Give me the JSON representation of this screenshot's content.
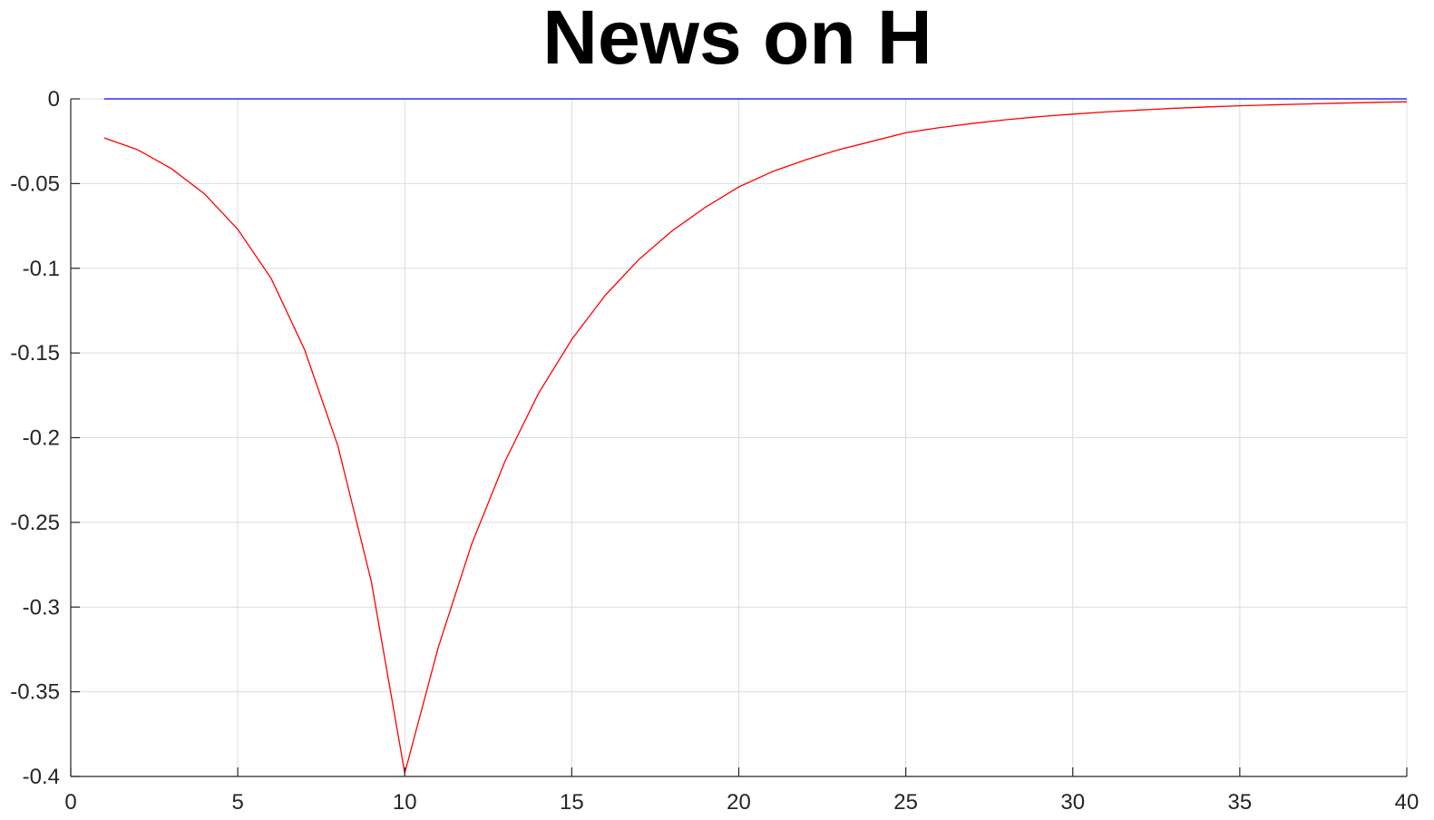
{
  "chart_data": {
    "type": "line",
    "title": "News on H",
    "xlabel": "",
    "ylabel": "",
    "xlim": [
      0,
      40
    ],
    "ylim": [
      -0.4,
      0
    ],
    "xticks": [
      0,
      5,
      10,
      15,
      20,
      25,
      30,
      35,
      40
    ],
    "xtick_labels": [
      "0",
      "5",
      "10",
      "15",
      "20",
      "25",
      "30",
      "35",
      "40"
    ],
    "yticks": [
      0,
      -0.05,
      -0.1,
      -0.15,
      -0.2,
      -0.25,
      -0.3,
      -0.35,
      -0.4
    ],
    "ytick_labels": [
      "0",
      "-0.05",
      "-0.1",
      "-0.15",
      "-0.2",
      "-0.25",
      "-0.3",
      "-0.35",
      "-0.4"
    ],
    "grid": true,
    "x": [
      1,
      2,
      3,
      4,
      5,
      6,
      7,
      8,
      9,
      10,
      11,
      12,
      13,
      14,
      15,
      16,
      17,
      18,
      19,
      20,
      21,
      22,
      23,
      24,
      25,
      26,
      27,
      28,
      29,
      30,
      31,
      32,
      33,
      34,
      35,
      36,
      37,
      38,
      39,
      40
    ],
    "series": [
      {
        "color": "#ff0000",
        "values": [
          -0.023,
          -0.03,
          -0.041,
          -0.056,
          -0.077,
          -0.106,
          -0.148,
          -0.205,
          -0.285,
          -0.398,
          -0.324,
          -0.263,
          -0.214,
          -0.174,
          -0.142,
          -0.116,
          -0.095,
          -0.078,
          -0.064,
          -0.052,
          -0.043,
          -0.036,
          -0.03,
          -0.025,
          -0.02,
          -0.017,
          -0.0145,
          -0.0123,
          -0.0105,
          -0.009,
          -0.0077,
          -0.0066,
          -0.0056,
          -0.0048,
          -0.0041,
          -0.0035,
          -0.003,
          -0.0025,
          -0.0021,
          -0.0017
        ]
      },
      {
        "color": "#0000ff",
        "values": [
          0,
          0,
          0,
          0,
          0,
          0,
          0,
          0,
          0,
          0,
          0,
          0,
          0,
          0,
          0,
          0,
          0,
          0,
          0,
          0,
          0,
          0,
          0,
          0,
          0,
          0,
          0,
          0,
          0,
          0,
          0,
          0,
          0,
          0,
          0,
          0,
          0,
          0,
          0,
          0
        ]
      }
    ]
  }
}
